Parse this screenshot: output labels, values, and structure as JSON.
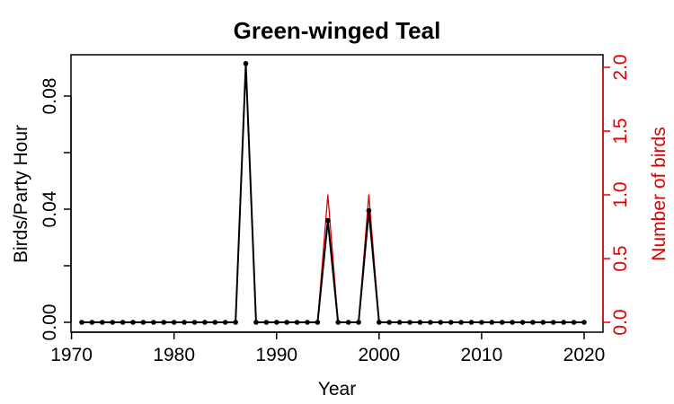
{
  "chart_data": {
    "type": "line",
    "title": "Green-winged Teal",
    "xlabel": "Year",
    "ylabel_left": "Birds/Party Hour",
    "ylabel_right": "Number of birds",
    "x_ticks": [
      "1970",
      "1980",
      "1990",
      "2000",
      "2010",
      "2020"
    ],
    "y_left_ticks": [
      "0.00",
      "0.04",
      "0.08"
    ],
    "y_right_ticks": [
      "0.0",
      "0.5",
      "1.0",
      "1.5",
      "2.0"
    ],
    "xlim": [
      1970,
      2021
    ],
    "ylim_left": [
      0,
      0.095
    ],
    "ylim_right": [
      0,
      2.0
    ],
    "years": [
      1971,
      1972,
      1973,
      1974,
      1975,
      1976,
      1977,
      1978,
      1979,
      1980,
      1981,
      1982,
      1983,
      1984,
      1985,
      1986,
      1987,
      1988,
      1989,
      1990,
      1991,
      1992,
      1993,
      1994,
      1995,
      1996,
      1997,
      1998,
      1999,
      2000,
      2001,
      2002,
      2003,
      2004,
      2005,
      2006,
      2007,
      2008,
      2009,
      2010,
      2011,
      2012,
      2013,
      2014,
      2015,
      2016,
      2017,
      2018,
      2019,
      2020
    ],
    "series": [
      {
        "name": "Birds/Party Hour",
        "axis": "left",
        "color": "#000000",
        "values": [
          0,
          0,
          0,
          0,
          0,
          0,
          0,
          0,
          0,
          0,
          0,
          0,
          0,
          0,
          0,
          0,
          0.0915,
          0,
          0,
          0,
          0,
          0,
          0,
          0,
          0.036,
          0,
          0,
          0,
          0.0395,
          0,
          0,
          0,
          0,
          0,
          0,
          0,
          0,
          0,
          0,
          0,
          0,
          0,
          0,
          0,
          0,
          0,
          0,
          0,
          0,
          0
        ]
      },
      {
        "name": "Number of birds",
        "axis": "right",
        "color": "#e00000",
        "values": [
          0,
          0,
          0,
          0,
          0,
          0,
          0,
          0,
          0,
          0,
          0,
          0,
          0,
          0,
          0,
          0,
          2,
          0,
          0,
          0,
          0,
          0,
          0,
          0,
          1,
          0,
          0,
          0,
          1,
          0,
          0,
          0,
          0,
          0,
          0,
          0,
          0,
          0,
          0,
          0,
          0,
          0,
          0,
          0,
          0,
          0,
          0,
          0,
          0,
          0
        ]
      }
    ],
    "grid": false,
    "legend": "none"
  }
}
